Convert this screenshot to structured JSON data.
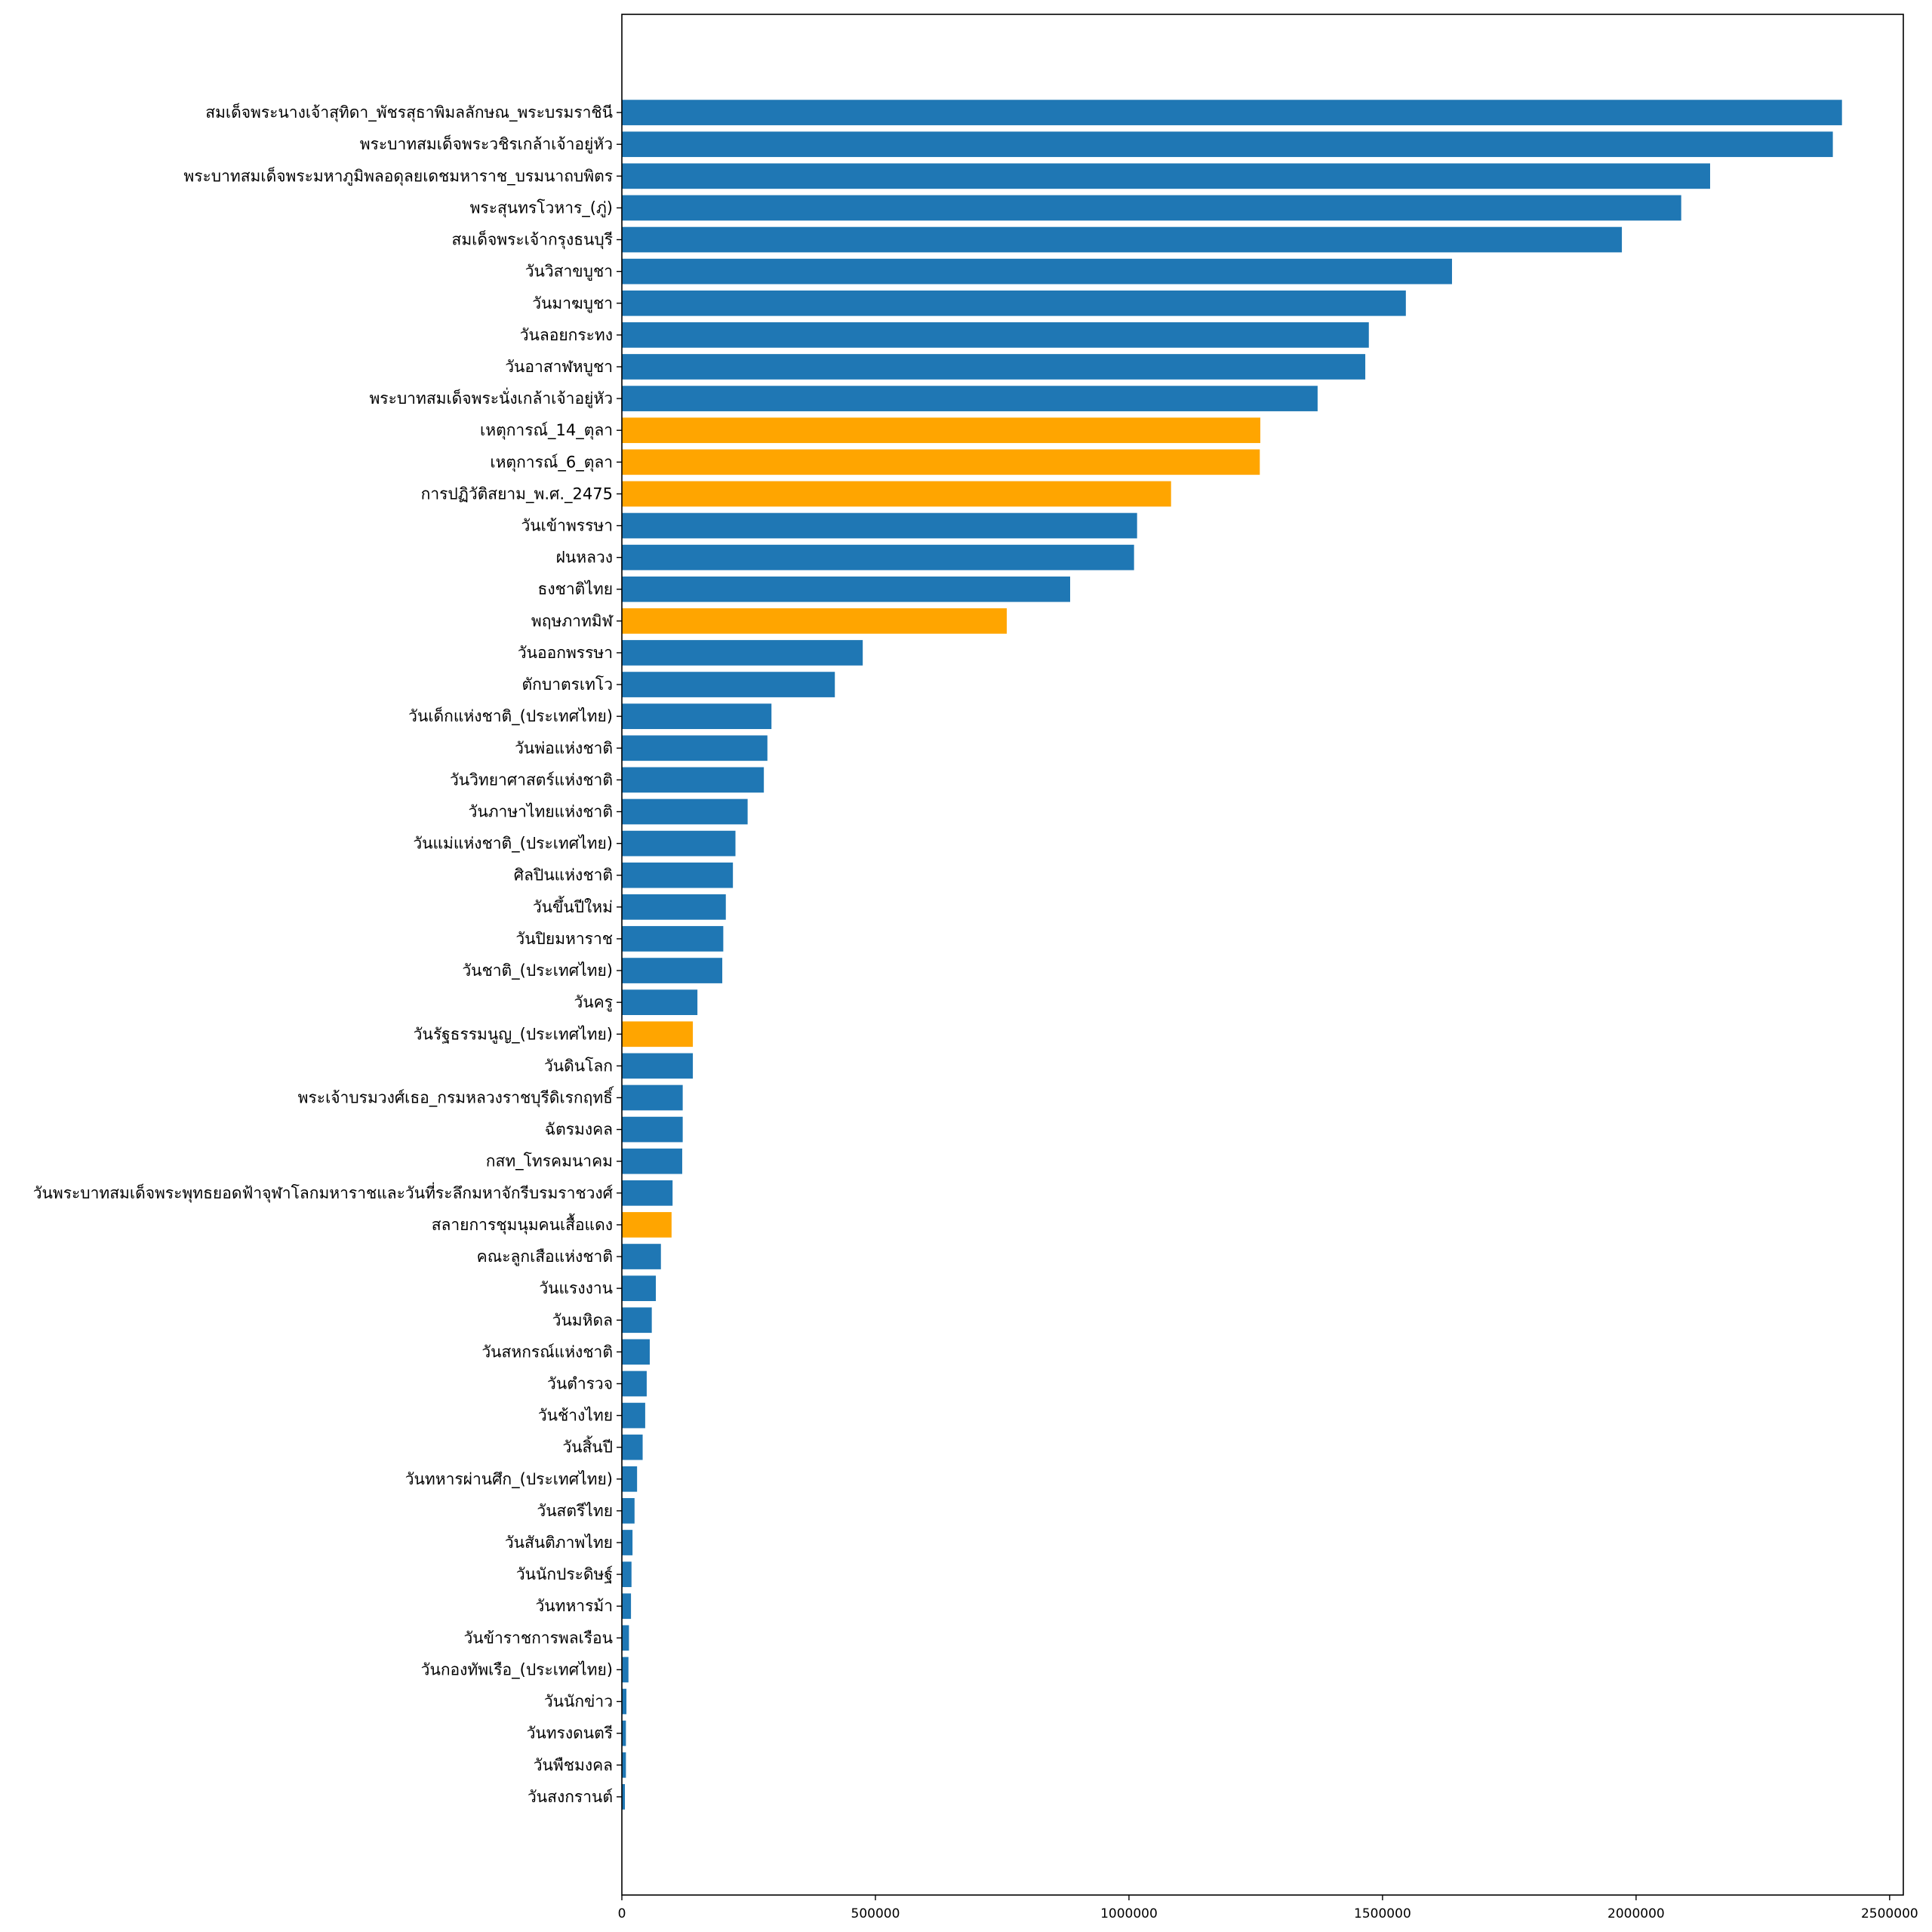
{
  "chart_data": {
    "type": "bar",
    "orientation": "horizontal",
    "title": "",
    "xlabel": "",
    "ylabel": "",
    "xlim": [
      0,
      2527000
    ],
    "xticks": [
      0,
      500000,
      1000000,
      1500000,
      2000000,
      2500000
    ],
    "xtick_labels": [
      "0",
      "500000",
      "1000000",
      "1500000",
      "2000000",
      "2500000"
    ],
    "grid": false,
    "legend": null,
    "colors": {
      "default": "#1f77b4",
      "highlight": "#ffa500"
    },
    "categories": [
      "สมเด็จพระนางเจ้าสุทิดา_พัชรสุธาพิมลลักษณ_พระบรมราชินี",
      "พระบาทสมเด็จพระวชิรเกล้าเจ้าอยู่หัว",
      "พระบาทสมเด็จพระมหาภูมิพลอดุลยเดชมหาราช_บรมนาถบพิตร",
      "พระสุนทรโวหาร_(ภู่)",
      "สมเด็จพระเจ้ากรุงธนบุรี",
      "วันวิสาขบูชา",
      "วันมาฆบูชา",
      "วันลอยกระทง",
      "วันอาสาฬหบูชา",
      "พระบาทสมเด็จพระนั่งเกล้าเจ้าอยู่หัว",
      "เหตุการณ์_14_ตุลา",
      "เหตุการณ์_6_ตุลา",
      "การปฏิวัติสยาม_พ.ศ._2475",
      "วันเข้าพรรษา",
      "ฝนหลวง",
      "ธงชาติไทย",
      "พฤษภาทมิฬ",
      "วันออกพรรษา",
      "ตักบาตรเทโว",
      "วันเด็กแห่งชาติ_(ประเทศไทย)",
      "วันพ่อแห่งชาติ",
      "วันวิทยาศาสตร์แห่งชาติ",
      "วันภาษาไทยแห่งชาติ",
      "วันแม่แห่งชาติ_(ประเทศไทย)",
      "ศิลปินแห่งชาติ",
      "วันขึ้นปีใหม่",
      "วันปิยมหาราช",
      "วันชาติ_(ประเทศไทย)",
      "วันครู",
      "วันรัฐธรรมนูญ_(ประเทศไทย)",
      "วันดินโลก",
      "พระเจ้าบรมวงศ์เธอ_กรมหลวงราชบุรีดิเรกฤทธิ์",
      "ฉัตรมงคล",
      "กสท_โทรคมนาคม",
      "วันพระบาทสมเด็จพระพุทธยอดฟ้าจุฬาโลกมหาราชและวันที่ระลึกมหาจักรีบรมราชวงศ์",
      "สลายการชุมนุมคนเสื้อแดง",
      "คณะลูกเสือแห่งชาติ",
      "วันแรงงาน",
      "วันมหิดล",
      "วันสหกรณ์แห่งชาติ",
      "วันตำรวจ",
      "วันช้างไทย",
      "วันสิ้นปี",
      "วันทหารผ่านศึก_(ประเทศไทย)",
      "วันสตรีไทย",
      "วันสันติภาพไทย",
      "วันนักประดิษฐ์",
      "วันทหารม้า",
      "วันข้าราชการพลเรือน",
      "วันกองทัพเรือ_(ประเทศไทย)",
      "วันนักข่าว",
      "วันทรงดนตรี",
      "วันพืชมงคล",
      "วันสงกรานต์"
    ],
    "values": [
      2406000,
      2388000,
      2146000,
      2089000,
      1972000,
      1637000,
      1546000,
      1473000,
      1466000,
      1372000,
      1259000,
      1258000,
      1083000,
      1016000,
      1010000,
      884000,
      759000,
      475000,
      420000,
      295000,
      287000,
      280000,
      248000,
      224000,
      219000,
      205000,
      200000,
      198000,
      149000,
      140000,
      140000,
      120000,
      120000,
      119000,
      100000,
      98000,
      77000,
      67000,
      59000,
      55000,
      49000,
      46000,
      41000,
      30000,
      25000,
      21000,
      19000,
      18000,
      14000,
      13000,
      9000,
      8000,
      8000,
      6000
    ],
    "highlighted": [
      "เหตุการณ์_14_ตุลา",
      "เหตุการณ์_6_ตุลา",
      "การปฏิวัติสยาม_พ.ศ._2475",
      "พฤษภาทมิฬ",
      "วันรัฐธรรมนูญ_(ประเทศไทย)",
      "สลายการชุมนุมคนเสื้อแดง"
    ]
  }
}
